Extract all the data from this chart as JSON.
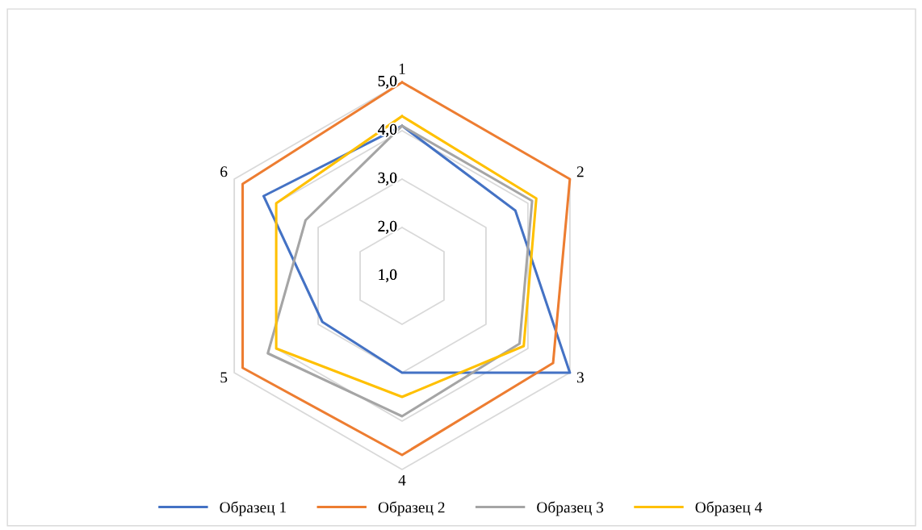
{
  "chart_data": {
    "type": "radar",
    "categories": [
      "1",
      "2",
      "3",
      "4",
      "5",
      "6"
    ],
    "series": [
      {
        "name": "Образец 1",
        "color": "#4472c4",
        "values": [
          4.1,
          3.7,
          5.0,
          3.0,
          2.9,
          4.3
        ]
      },
      {
        "name": "Образец 2",
        "color": "#ed7d31",
        "values": [
          5.0,
          5.0,
          4.6,
          4.7,
          4.8,
          4.8
        ]
      },
      {
        "name": "Образец 3",
        "color": "#a5a5a5",
        "values": [
          4.1,
          4.1,
          3.8,
          3.9,
          4.2,
          3.3
        ]
      },
      {
        "name": "Образец 4",
        "color": "#ffc000",
        "values": [
          4.3,
          4.2,
          3.9,
          3.5,
          4.0,
          4.0
        ]
      }
    ],
    "ylim": [
      1,
      5
    ],
    "yticks": [
      {
        "value": 1,
        "label": "1,0"
      },
      {
        "value": 2,
        "label": "2,0"
      },
      {
        "value": 3,
        "label": "3,0"
      },
      {
        "value": 4,
        "label": "4,0"
      },
      {
        "value": 5,
        "label": "5,0"
      }
    ],
    "grid": true,
    "legend": "bottom"
  }
}
